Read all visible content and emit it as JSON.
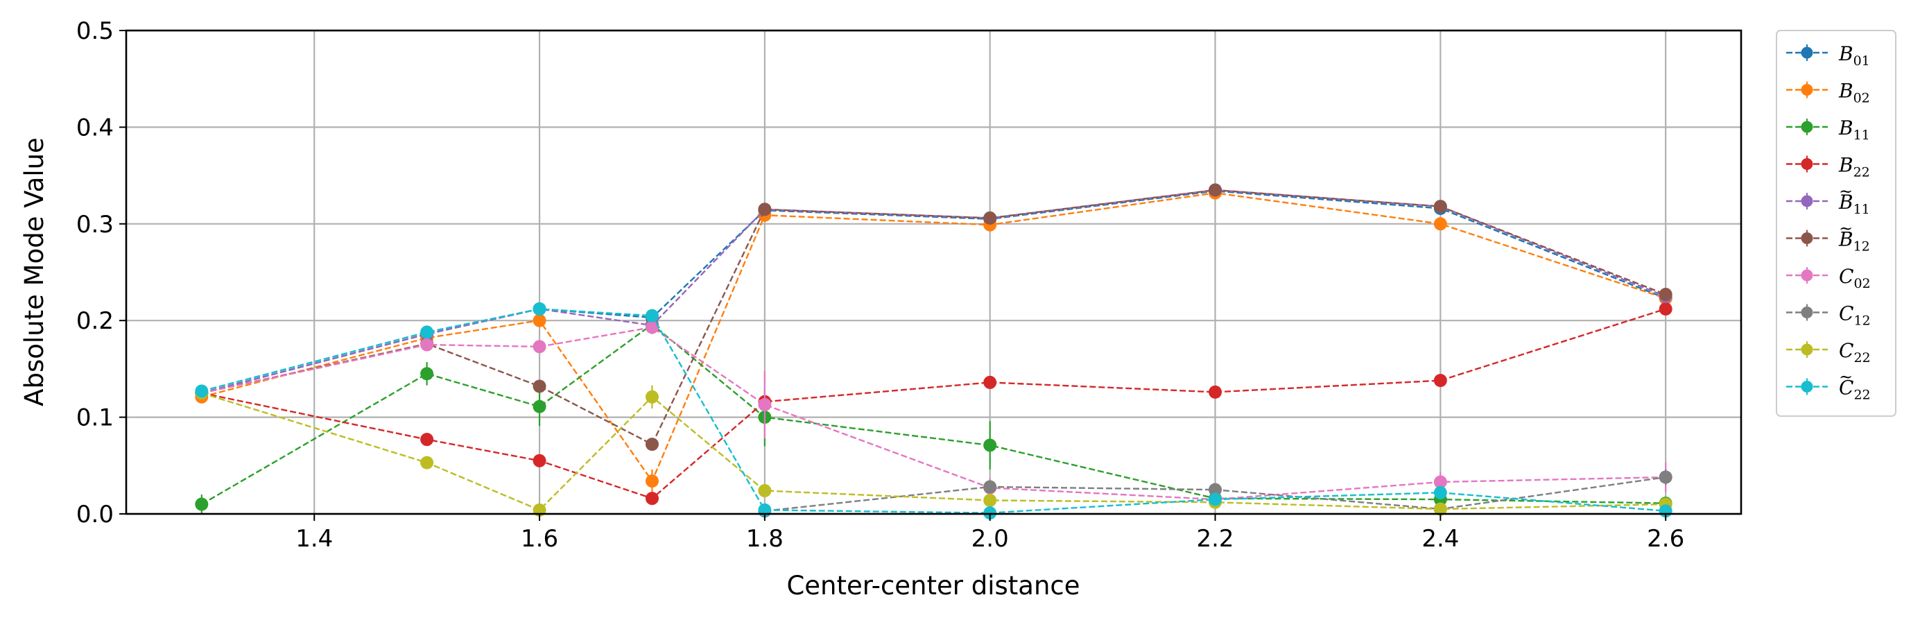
{
  "chart_data": {
    "type": "line",
    "xlabel": "Center-center distance",
    "ylabel": "Absolute Mode Value",
    "xlim": [
      1.233,
      2.667
    ],
    "ylim": [
      0.0,
      0.5
    ],
    "x_ticks": [
      "1.4",
      "1.6",
      "1.8",
      "2.0",
      "2.2",
      "2.4",
      "2.6"
    ],
    "y_ticks": [
      "0.0",
      "0.1",
      "0.2",
      "0.3",
      "0.4",
      "0.5"
    ],
    "grid": true,
    "legend_position": "outside-right",
    "x": [
      1.3,
      1.5,
      1.6,
      1.7,
      1.8,
      2.0,
      2.2,
      2.4,
      2.6
    ],
    "series": [
      {
        "name": "B01",
        "label_main": "B",
        "label_tilde": false,
        "label_sub": "01",
        "color": "#1f77b4",
        "values": [
          0.125,
          0.186,
          0.212,
          0.203,
          0.314,
          0.305,
          0.334,
          0.316,
          0.223
        ],
        "errors": [
          0.004,
          0.004,
          0.004,
          0.004,
          0.004,
          0.004,
          0.004,
          0.004,
          0.004
        ]
      },
      {
        "name": "B02",
        "label_main": "B",
        "label_tilde": false,
        "label_sub": "02",
        "color": "#ff7f0e",
        "values": [
          0.121,
          0.182,
          0.2,
          0.034,
          0.309,
          0.299,
          0.332,
          0.3,
          0.223
        ],
        "errors": [
          0.004,
          0.004,
          0.004,
          0.012,
          0.004,
          0.004,
          0.004,
          0.004,
          0.004
        ]
      },
      {
        "name": "B11",
        "label_main": "B",
        "label_tilde": false,
        "label_sub": "11",
        "color": "#2ca02c",
        "values": [
          0.01,
          0.145,
          0.111,
          0.196,
          0.1,
          0.071,
          0.016,
          0.015,
          0.011
        ],
        "errors": [
          0.01,
          0.012,
          0.02,
          0.01,
          0.03,
          0.025,
          0.006,
          0.006,
          0.006
        ]
      },
      {
        "name": "B22",
        "label_main": "B",
        "label_tilde": false,
        "label_sub": "22",
        "color": "#d62728",
        "values": [
          0.125,
          0.077,
          0.055,
          0.016,
          0.116,
          0.136,
          0.126,
          0.138,
          0.212
        ],
        "errors": [
          0.004,
          0.004,
          0.004,
          0.004,
          0.004,
          0.004,
          0.004,
          0.004,
          0.004
        ]
      },
      {
        "name": "B̃11",
        "label_main": "B",
        "label_tilde": true,
        "label_sub": "11",
        "color": "#9467bd",
        "values": [
          0.125,
          0.186,
          0.212,
          0.195,
          0.315,
          0.306,
          0.335,
          0.318,
          0.225
        ],
        "errors": [
          0.004,
          0.004,
          0.004,
          0.004,
          0.004,
          0.004,
          0.004,
          0.004,
          0.004
        ]
      },
      {
        "name": "B̃12",
        "label_main": "B",
        "label_tilde": true,
        "label_sub": "12",
        "color": "#8c564b",
        "values": [
          0.125,
          0.176,
          0.132,
          0.072,
          0.315,
          0.306,
          0.335,
          0.318,
          0.227
        ],
        "errors": [
          0.004,
          0.004,
          0.004,
          0.004,
          0.004,
          0.004,
          0.004,
          0.004,
          0.004
        ]
      },
      {
        "name": "C02",
        "label_main": "C",
        "label_tilde": false,
        "label_sub": "02",
        "color": "#e377c2",
        "values": [
          0.125,
          0.175,
          0.173,
          0.193,
          0.113,
          0.027,
          0.015,
          0.033,
          0.038
        ],
        "errors": [
          0.004,
          0.004,
          0.006,
          0.006,
          0.035,
          0.01,
          0.005,
          0.01,
          0.015
        ]
      },
      {
        "name": "C12",
        "label_main": "C",
        "label_tilde": false,
        "label_sub": "12",
        "color": "#7f7f7f",
        "values": [
          null,
          null,
          null,
          null,
          0.003,
          0.028,
          0.025,
          0.005,
          0.038
        ],
        "errors": [
          null,
          null,
          null,
          null,
          0.003,
          0.006,
          0.006,
          0.004,
          0.008
        ]
      },
      {
        "name": "C22",
        "label_main": "C",
        "label_tilde": false,
        "label_sub": "22",
        "color": "#bcbd22",
        "values": [
          0.125,
          0.053,
          0.004,
          0.121,
          0.024,
          0.014,
          0.012,
          0.005,
          0.01
        ],
        "errors": [
          0.004,
          0.004,
          0.004,
          0.012,
          0.004,
          0.004,
          0.004,
          0.004,
          0.004
        ]
      },
      {
        "name": "C̃22",
        "label_main": "C",
        "label_tilde": true,
        "label_sub": "22",
        "color": "#17becf",
        "values": [
          0.127,
          0.188,
          0.212,
          0.205,
          0.004,
          0.001,
          0.015,
          0.022,
          0.003
        ],
        "errors": [
          0.004,
          0.004,
          0.004,
          0.004,
          0.004,
          0.004,
          0.006,
          0.006,
          0.004
        ]
      }
    ]
  }
}
